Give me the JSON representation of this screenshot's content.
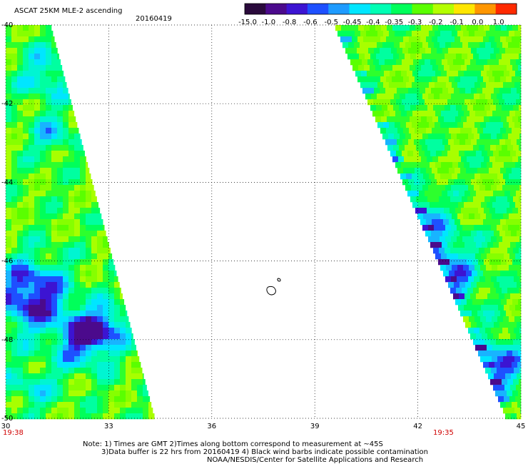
{
  "header": {
    "title": "ASCAT 25KM MLE-2 ascending",
    "date": "20160419"
  },
  "colorbar": {
    "labels": [
      "-15.0",
      "-1.0",
      "-0.8",
      "-0.6",
      "-0.5",
      "-0.45",
      "-0.4",
      "-0.35",
      "-0.3",
      "-0.2",
      "-0.1",
      "0.0",
      "1.0"
    ],
    "colors": [
      "#2a0a3c",
      "#4b0a8c",
      "#3c14d2",
      "#1e50ff",
      "#1e9bff",
      "#00e6ff",
      "#00ffb4",
      "#00ff5a",
      "#5aff00",
      "#b4ff00",
      "#ffe600",
      "#ff9600",
      "#ff2a00"
    ]
  },
  "chart_data": {
    "type": "heatmap",
    "xlabel": "",
    "ylabel": "",
    "xlim": [
      30,
      45
    ],
    "ylim": [
      -50,
      -40
    ],
    "x_ticks": [
      "30",
      "33",
      "36",
      "39",
      "42",
      "45"
    ],
    "y_ticks": [
      "-40",
      "-42",
      "-44",
      "-46",
      "-48",
      "-50"
    ],
    "grid": true,
    "swaths": [
      {
        "name": "left",
        "time_label": "19:38",
        "lon_range": [
          30,
          34.4
        ]
      },
      {
        "name": "right",
        "time_label": "19:35",
        "lon_range": [
          39.7,
          45
        ]
      }
    ]
  },
  "notes": {
    "line1": "Note: 1) Times are GMT 2)Times along bottom correspond to measurement at ~45S",
    "line2": "3)Data buffer is 22 hrs from 20160419 4) Black wind barbs indicate possible contamination",
    "line3": "NOAA/NESDIS/Center for Satellite Applications and Research"
  }
}
